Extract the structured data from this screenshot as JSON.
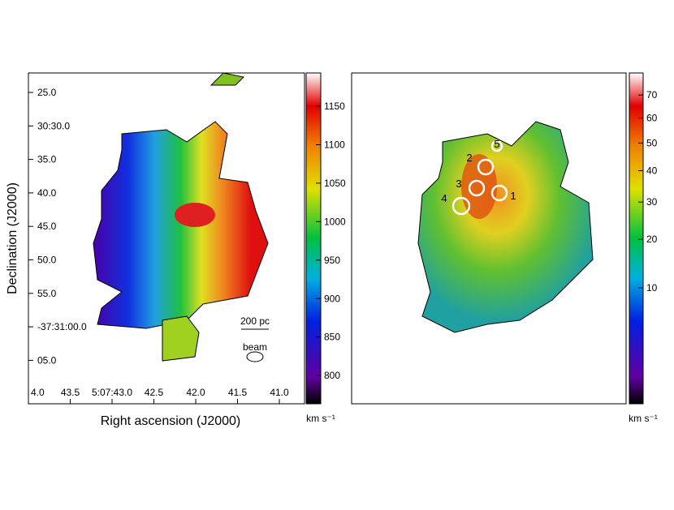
{
  "left_panel": {
    "y_axis_label": "Declination (J2000)",
    "x_axis_label": "Right ascension (J2000)",
    "dec_ticks": [
      "25.0",
      "30:30.0",
      "35.0",
      "40.0",
      "45.0",
      "50.0",
      "55.0",
      "-37:31:00.0",
      "05.0"
    ],
    "ra_ticks": [
      "4.0",
      "43.5",
      "5:07:43.0",
      "42.5",
      "42.0",
      "41.5",
      "41.0"
    ],
    "scale_bar": "200 pc",
    "beam_label": "beam"
  },
  "left_colorbar": {
    "ticks": [
      1150,
      1100,
      1050,
      1000,
      950,
      900,
      850,
      800
    ],
    "unit": "km s⁻¹"
  },
  "right_panel": {
    "regions": [
      "1",
      "2",
      "3",
      "4",
      "5"
    ]
  },
  "right_colorbar": {
    "ticks": [
      70,
      60,
      50,
      40,
      30,
      20,
      10
    ],
    "unit": "km s⁻¹"
  }
}
